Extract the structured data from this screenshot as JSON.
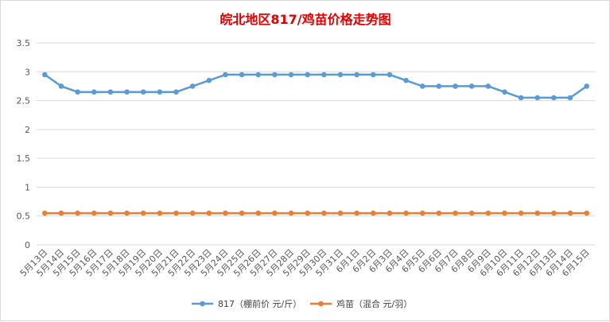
{
  "chart_data": {
    "type": "line",
    "title": "皖北地区817/鸡苗价格走势图",
    "categories": [
      "5月13日",
      "5月14日",
      "5月15日",
      "5月16日",
      "5月17日",
      "5月18日",
      "5月19日",
      "5月20日",
      "5月21日",
      "5月22日",
      "5月23日",
      "5月24日",
      "5月25日",
      "5月26日",
      "5月27日",
      "5月28日",
      "5月29日",
      "5月30日",
      "5月31日",
      "6月1日",
      "6月2日",
      "6月3日",
      "6月4日",
      "6月5日",
      "6月6日",
      "6月7日",
      "6月8日",
      "6月9日",
      "6月10日",
      "6月11日",
      "6月12日",
      "6月13日",
      "6月14日",
      "6月15日"
    ],
    "yticks": [
      "0",
      "0.5",
      "1",
      "1.5",
      "2",
      "2.5",
      "3",
      "3.5"
    ],
    "ylim": [
      0,
      3.5
    ],
    "grid": true,
    "legend_position": "bottom",
    "series": [
      {
        "name": "817（棚前价 元/斤）",
        "color": "#5b9bd5",
        "values": [
          2.95,
          2.75,
          2.65,
          2.65,
          2.65,
          2.65,
          2.65,
          2.65,
          2.65,
          2.75,
          2.85,
          2.95,
          2.95,
          2.95,
          2.95,
          2.95,
          2.95,
          2.95,
          2.95,
          2.95,
          2.95,
          2.95,
          2.85,
          2.75,
          2.75,
          2.75,
          2.75,
          2.75,
          2.65,
          2.55,
          2.55,
          2.55,
          2.55,
          2.75
        ]
      },
      {
        "name": "鸡苗（混合 元/羽）",
        "color": "#ed7d31",
        "values": [
          0.55,
          0.55,
          0.55,
          0.55,
          0.55,
          0.55,
          0.55,
          0.55,
          0.55,
          0.55,
          0.55,
          0.55,
          0.55,
          0.55,
          0.55,
          0.55,
          0.55,
          0.55,
          0.55,
          0.55,
          0.55,
          0.55,
          0.55,
          0.55,
          0.55,
          0.55,
          0.55,
          0.55,
          0.55,
          0.55,
          0.55,
          0.55,
          0.55,
          0.55
        ]
      }
    ]
  }
}
